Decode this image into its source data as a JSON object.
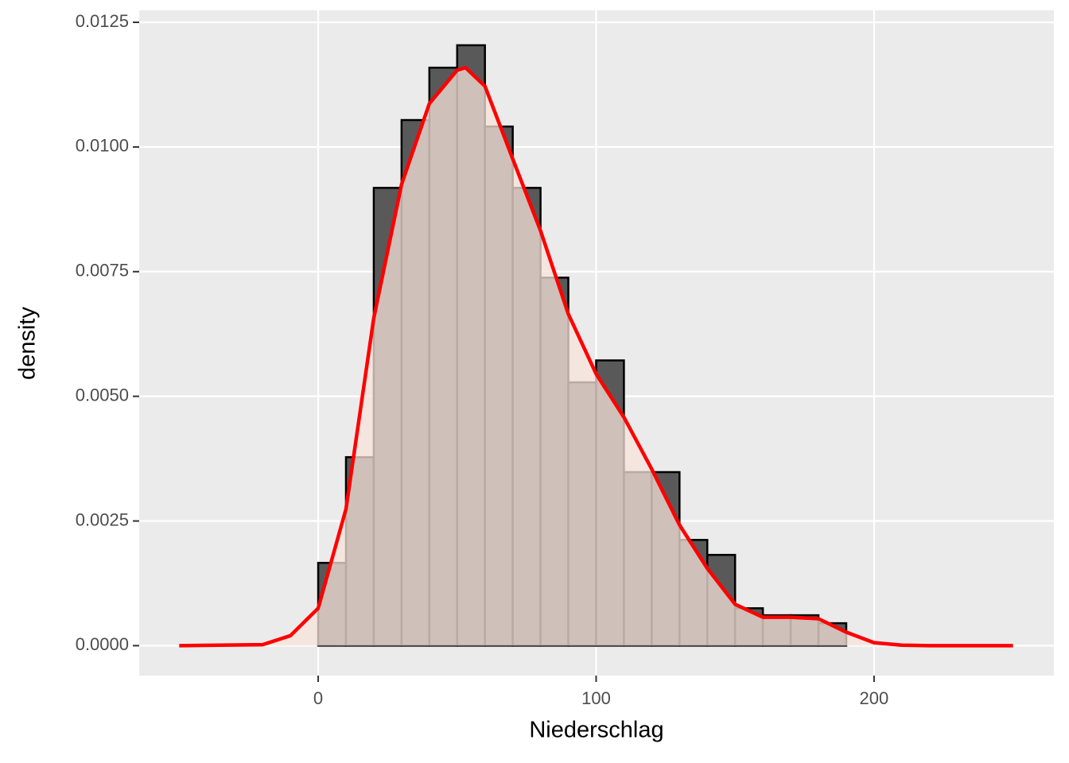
{
  "chart_data": {
    "type": "histogram",
    "x_label": "Niederschlag",
    "y_label": "density",
    "bins": [
      0,
      10,
      20,
      30,
      40,
      50,
      60,
      70,
      80,
      90,
      100,
      110,
      120,
      130,
      140,
      150,
      160,
      170,
      180,
      190
    ],
    "values": [
      0.00166,
      0.00378,
      0.00918,
      0.01054,
      0.01159,
      0.01204,
      0.01041,
      0.00918,
      0.00738,
      0.00528,
      0.00572,
      0.00348,
      0.00348,
      0.00212,
      0.00182,
      0.00075,
      0.00061,
      0.00061,
      0.00045
    ],
    "color": "#595959",
    "edgecolor": "#000000",
    "density": {
      "x": [
        -50,
        -20,
        -10,
        0,
        10,
        20,
        30,
        40,
        50,
        53,
        60,
        70,
        80,
        90,
        100,
        110,
        120,
        130,
        140,
        150,
        160,
        170,
        180,
        190,
        200,
        210,
        220,
        250
      ],
      "values": [
        0,
        2e-05,
        0.0002,
        0.00075,
        0.00274,
        0.00657,
        0.00925,
        0.01087,
        0.01154,
        0.01159,
        0.01122,
        0.00976,
        0.00832,
        0.00665,
        0.00545,
        0.00458,
        0.00354,
        0.00242,
        0.00155,
        0.00083,
        0.00057,
        0.00057,
        0.00054,
        0.00027,
        6e-05,
        1e-05,
        0,
        0
      ],
      "color": "#ff0000",
      "fill": "#f7e3d9"
    },
    "xlim": [
      -64.4,
      264.7
    ],
    "ylim": [
      -0.0006,
      0.01274
    ],
    "xticks": [
      0,
      100,
      200
    ],
    "yticks": [
      {
        "value": 0,
        "label": "0.0000"
      },
      {
        "value": 0.0025,
        "label": "0.0025"
      },
      {
        "value": 0.005,
        "label": "0.0050"
      },
      {
        "value": 0.0075,
        "label": "0.0075"
      },
      {
        "value": 0.01,
        "label": "0.0100"
      },
      {
        "value": 0.0125,
        "label": "0.0125"
      }
    ],
    "grid": true
  }
}
